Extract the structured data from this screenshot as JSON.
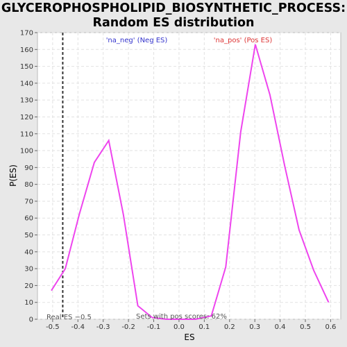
{
  "chart_data": {
    "type": "line",
    "title_lines": [
      "GLYCEROPHOSPHOLIPID_BIOSYNTHETIC_PROCESS:",
      "Random ES distribution"
    ],
    "xlabel": "ES",
    "ylabel": "P(ES)",
    "xlim": [
      -0.56,
      0.64
    ],
    "ylim": [
      0,
      170
    ],
    "x_ticks": [
      -0.5,
      -0.4,
      -0.3,
      -0.2,
      -0.1,
      0.0,
      0.1,
      0.2,
      0.3,
      0.4,
      0.5,
      0.6
    ],
    "x_tick_labels": [
      "-0.5",
      "-0.4",
      "-0.3",
      "-0.2",
      "-0.1",
      "0.0",
      "0.1",
      "0.2",
      "0.3",
      "0.4",
      "0.5",
      "0.6"
    ],
    "y_ticks": [
      0,
      10,
      20,
      30,
      40,
      50,
      60,
      70,
      80,
      90,
      100,
      110,
      120,
      130,
      140,
      150,
      160,
      170
    ],
    "y_tick_labels": [
      "0",
      "10",
      "20",
      "30",
      "40",
      "50",
      "60",
      "70",
      "80",
      "90",
      "100",
      "110",
      "120",
      "130",
      "140",
      "150",
      "160",
      "170"
    ],
    "grid": true,
    "series": [
      {
        "color": "#ee44ee",
        "x": [
          -0.505,
          -0.45,
          -0.395,
          -0.335,
          -0.278,
          -0.22,
          -0.163,
          -0.106,
          -0.05,
          0.007,
          0.065,
          0.128,
          0.185,
          0.244,
          0.302,
          0.36,
          0.418,
          0.475,
          0.533,
          0.592
        ],
        "y": [
          17,
          30,
          62,
          93,
          106,
          62,
          8,
          1,
          0,
          0,
          0,
          2,
          31,
          111,
          163,
          133,
          91,
          53,
          29,
          10
        ]
      }
    ],
    "real_es": -0.46,
    "annotations": {
      "neg_label": "'na_neg' (Neg ES)",
      "pos_label": "'na_pos' (Pos ES)",
      "real_es_label": "Real ES −0.5",
      "pos_scores_label": "Sets with pos scores: 62%"
    },
    "colors": {
      "neg": "#3333cc",
      "pos": "#dd3333",
      "line": "#ee44ee",
      "real_es_line": "#333333"
    }
  }
}
